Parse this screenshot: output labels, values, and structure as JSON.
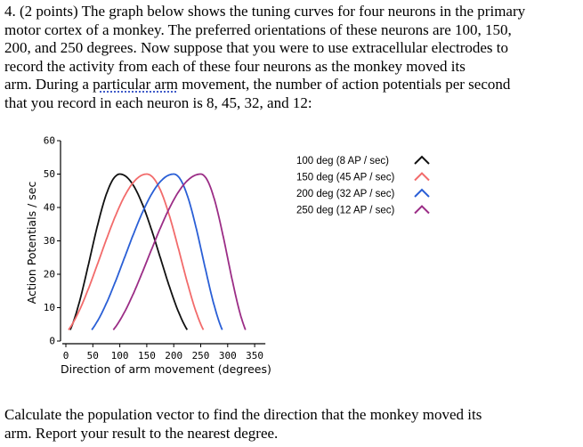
{
  "question": {
    "line1": "4. (2 points) The graph below shows the tuning curves for four neurons in the primary",
    "line2": "motor cortex of a monkey.  The preferred orientations of these neurons are 100, 150,",
    "line3": "200, and 250 degrees.  Now suppose that you were to use extracellular electrodes to",
    "line4": "record the activity from each of these four neurons as the monkey moved its",
    "line5_a": "arm.  During a ",
    "line5_u": "particular arm",
    "line5_b": " movement, the number of action potentials per second",
    "line6": "that you record in each neuron is 8, 45, 32, and 12:"
  },
  "footer": {
    "line1": "Calculate the population vector to find the direction that the monkey moved its",
    "line2": "arm.  Report your result to the nearest degree."
  },
  "chart_data": {
    "type": "line",
    "xlabel": "Direction of arm movement (degrees)",
    "ylabel": "Action Potentials / sec",
    "xlim": [
      0,
      360
    ],
    "ylim": [
      0,
      60
    ],
    "xticks": [
      0,
      50,
      100,
      150,
      200,
      250,
      300,
      350
    ],
    "yticks": [
      0,
      10,
      20,
      30,
      40,
      50,
      60
    ],
    "legend_position": "right",
    "series": [
      {
        "name": "100 deg (8 AP / sec)",
        "color": "#111111",
        "preferred": 100,
        "peak": 50,
        "start": 8,
        "end": 225
      },
      {
        "name": "150 deg (45 AP / sec)",
        "color": "#f26b6b",
        "preferred": 150,
        "peak": 50,
        "start": 5,
        "end": 255
      },
      {
        "name": "200 deg (32 AP / sec)",
        "color": "#2a5fd6",
        "preferred": 200,
        "peak": 50,
        "start": 48,
        "end": 290
      },
      {
        "name": "250 deg (12 AP / sec)",
        "color": "#9b2d86",
        "preferred": 250,
        "peak": 50,
        "start": 88,
        "end": 333
      }
    ]
  }
}
